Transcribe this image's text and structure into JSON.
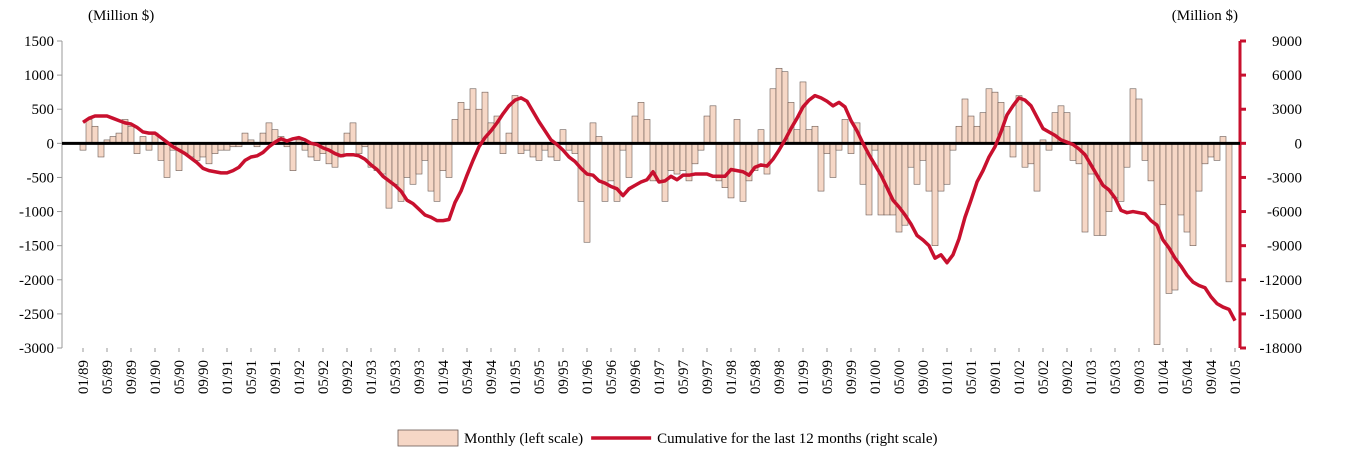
{
  "chart_data": {
    "type": "bar",
    "y_axis_label": "(Million $)",
    "y2_axis_label": "(Million $)",
    "categories": [
      "01/89",
      null,
      null,
      null,
      "05/89",
      null,
      null,
      null,
      "09/89",
      null,
      null,
      null,
      "01/90",
      null,
      null,
      null,
      "05/90",
      null,
      null,
      null,
      "09/90",
      null,
      null,
      null,
      "01/91",
      null,
      null,
      null,
      "05/91",
      null,
      null,
      null,
      "09/91",
      null,
      null,
      null,
      "01/92",
      null,
      null,
      null,
      "05/92",
      null,
      null,
      null,
      "09/92",
      null,
      null,
      null,
      "01/93",
      null,
      null,
      null,
      "05/93",
      null,
      null,
      null,
      "09/93",
      null,
      null,
      null,
      "01/94",
      null,
      null,
      null,
      "05/94",
      null,
      null,
      null,
      "09/94",
      null,
      null,
      null,
      "01/95",
      null,
      null,
      null,
      "05/95",
      null,
      null,
      null,
      "09/95",
      null,
      null,
      null,
      "01/96",
      null,
      null,
      null,
      "05/96",
      null,
      null,
      null,
      "09/96",
      null,
      null,
      null,
      "01/97",
      null,
      null,
      null,
      "05/97",
      null,
      null,
      null,
      "09/97",
      null,
      null,
      null,
      "01/98",
      null,
      null,
      null,
      "05/98",
      null,
      null,
      null,
      "09/98",
      null,
      null,
      null,
      "01/99",
      null,
      null,
      null,
      "05/99",
      null,
      null,
      null,
      "09/99",
      null,
      null,
      null,
      "01/00",
      null,
      null,
      null,
      "05/00",
      null,
      null,
      null,
      "09/00",
      null,
      null,
      null,
      "01/01",
      null,
      null,
      null,
      "05/01",
      null,
      null,
      null,
      "09/01",
      null,
      null,
      null,
      "01/02",
      null,
      null,
      null,
      "05/02",
      null,
      null,
      null,
      "09/02",
      null,
      null,
      null,
      "01/03",
      null,
      null,
      null,
      "05/03",
      null,
      null,
      null,
      "09/03",
      null,
      null,
      null,
      "01/04",
      null,
      null,
      null,
      "05/04",
      null,
      null,
      null,
      "09/04",
      null,
      null,
      null,
      "01/05"
    ],
    "series": [
      {
        "name": "Monthly (left scale)",
        "type": "bar",
        "color": "#f6d7c6",
        "values": [
          -100,
          350,
          250,
          -200,
          50,
          100,
          150,
          350,
          250,
          -150,
          100,
          -100,
          150,
          -250,
          -500,
          -100,
          -400,
          -150,
          -200,
          -250,
          -200,
          -300,
          -150,
          -100,
          -100,
          -50,
          -50,
          150,
          50,
          -50,
          150,
          300,
          200,
          100,
          -50,
          -400,
          50,
          -100,
          -200,
          -250,
          -150,
          -300,
          -350,
          -200,
          150,
          300,
          -150,
          -50,
          -350,
          -400,
          -450,
          -950,
          -600,
          -850,
          -500,
          -600,
          -450,
          -250,
          -700,
          -850,
          -400,
          -500,
          350,
          600,
          500,
          800,
          500,
          750,
          300,
          400,
          -150,
          150,
          700,
          -150,
          -100,
          -200,
          -250,
          -100,
          -200,
          -250,
          200,
          -100,
          -150,
          -850,
          -1450,
          300,
          100,
          -850,
          -550,
          -850,
          -100,
          -500,
          400,
          600,
          350,
          -550,
          -550,
          -850,
          -400,
          -450,
          -400,
          -550,
          -300,
          -100,
          400,
          550,
          -550,
          -650,
          -800,
          350,
          -850,
          -550,
          -400,
          200,
          -450,
          800,
          1100,
          1050,
          600,
          200,
          900,
          200,
          250,
          -700,
          -150,
          -500,
          -100,
          350,
          -150,
          300,
          -600,
          -1050,
          -100,
          -1050,
          -1050,
          -1050,
          -1300,
          -1200,
          -350,
          -600,
          -250,
          -700,
          -1500,
          -700,
          -600,
          -100,
          250,
          650,
          400,
          250,
          450,
          800,
          750,
          600,
          250,
          -200,
          700,
          -350,
          -300,
          -700,
          50,
          -100,
          450,
          550,
          450,
          -250,
          -300,
          -1300,
          -450,
          -1350,
          -1350,
          -1000,
          -800,
          -850,
          -350,
          800,
          650,
          -250,
          -550,
          -2950,
          -900,
          -2200,
          -2150,
          -1050,
          -1300,
          -1500,
          -700,
          -300,
          -200,
          -250,
          100,
          -2030,
          null
        ]
      },
      {
        "name": "Cumulative for the last 12 months (right scale)",
        "type": "line",
        "axis": "y2",
        "color": "#c8102e",
        "values": [
          1850,
          2200,
          2400,
          2400,
          2400,
          2200,
          2000,
          1800,
          1700,
          1400,
          1000,
          900,
          900,
          500,
          100,
          -300,
          -600,
          -900,
          -1300,
          -1700,
          -2200,
          -2400,
          -2500,
          -2600,
          -2600,
          -2400,
          -2100,
          -1500,
          -1200,
          -1100,
          -800,
          -300,
          100,
          400,
          200,
          400,
          500,
          300,
          0,
          -100,
          -400,
          -600,
          -900,
          -1100,
          -1000,
          -1000,
          -1100,
          -1400,
          -1900,
          -2300,
          -2900,
          -3300,
          -3700,
          -4200,
          -5000,
          -5300,
          -5800,
          -6300,
          -6500,
          -6800,
          -6800,
          -6700,
          -5200,
          -4200,
          -2800,
          -1500,
          -300,
          500,
          1100,
          1800,
          2600,
          3300,
          3800,
          4000,
          3700,
          2800,
          1900,
          1100,
          300,
          -100,
          -600,
          -1200,
          -1600,
          -2200,
          -2700,
          -2800,
          -3300,
          -3500,
          -3800,
          -4000,
          -4600,
          -4000,
          -3700,
          -3400,
          -3200,
          -2500,
          -3400,
          -3300,
          -2900,
          -3200,
          -2800,
          -2800,
          -2700,
          -2700,
          -2700,
          -2900,
          -2900,
          -2900,
          -2300,
          -2400,
          -2500,
          -2800,
          -2100,
          -1900,
          -2000,
          -1400,
          -600,
          300,
          1300,
          2200,
          3200,
          3800,
          4200,
          4000,
          3700,
          3300,
          3600,
          3200,
          2000,
          1100,
          0,
          -1000,
          -1900,
          -2800,
          -3900,
          -5000,
          -5600,
          -6300,
          -7100,
          -8100,
          -8500,
          -9000,
          -10100,
          -9800,
          -10500,
          -9800,
          -8400,
          -6500,
          -5000,
          -3400,
          -2400,
          -1200,
          -300,
          1000,
          2500,
          3300,
          4000,
          3800,
          3300,
          2300,
          1300,
          1000,
          700,
          300,
          100,
          -100,
          -500,
          -1000,
          -1900,
          -2800,
          -3700,
          -4100,
          -4800,
          -5900,
          -6100,
          -6000,
          -6100,
          -6200,
          -6800,
          -7200,
          -8500,
          -9200,
          -10100,
          -10800,
          -11600,
          -12200,
          -12500,
          -12700,
          -13500,
          -14100,
          -14400,
          -14600,
          -15600
        ]
      }
    ],
    "ylim": [
      -3000,
      1500
    ],
    "yticks": [
      -3000,
      -2500,
      -2000,
      -1500,
      -1000,
      -500,
      0,
      500,
      1000,
      1500
    ],
    "y2lim": [
      -18000,
      9000
    ],
    "y2ticks": [
      -18000,
      -15000,
      -12000,
      -9000,
      -6000,
      -3000,
      0,
      3000,
      6000,
      9000
    ],
    "y2_axis_color": "#c8102e",
    "zero_line": true,
    "legend": "bottom"
  }
}
